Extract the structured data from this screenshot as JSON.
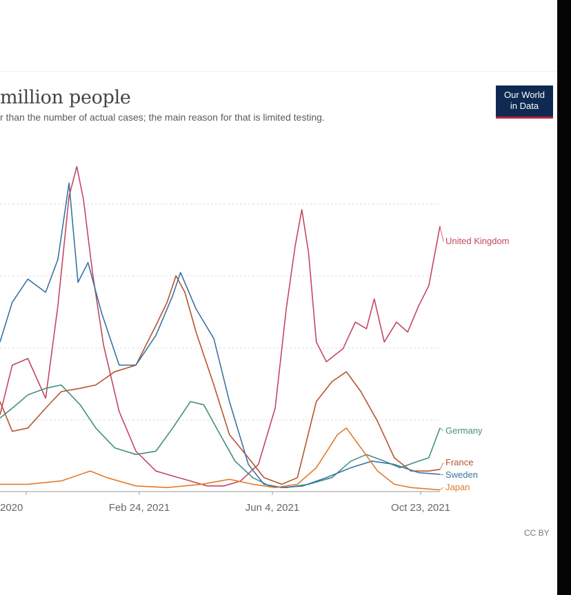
{
  "header": {
    "title": "million people",
    "subtitle": "r than the number of actual cases; the main reason for that is limited testing."
  },
  "logo": {
    "line1": "Our World",
    "line2": "in Data"
  },
  "footer": {
    "license": "CC BY"
  },
  "colors": {
    "United Kingdom": "#c4455e",
    "Germany": "#3f8f80",
    "France": "#b5532c",
    "Sweden": "#3a72a1",
    "Japan": "#e07a2a",
    "logo_bg": "#0f2a52",
    "logo_accent": "#c0243a"
  },
  "chart_data": {
    "type": "line",
    "xlabel": "",
    "ylabel": "",
    "x_ticks": [
      "2020",
      "Feb 24, 2021",
      "Jun 4, 2021",
      "Oct 23, 2021"
    ],
    "grid": "horizontal dashed",
    "legend": "inline labels at line ends (right)",
    "series": [
      {
        "name": "United Kingdom",
        "points": [
          [
            "2020-10-21",
            0.23
          ],
          [
            "2020-11-01",
            0.38
          ],
          [
            "2020-11-15",
            0.4
          ],
          [
            "2020-12-01",
            0.28
          ],
          [
            "2020-12-12",
            0.56
          ],
          [
            "2020-12-22",
            0.89
          ],
          [
            "2020-12-29",
            0.98
          ],
          [
            "2021-01-04",
            0.88
          ],
          [
            "2021-01-12",
            0.66
          ],
          [
            "2021-01-22",
            0.44
          ],
          [
            "2021-02-05",
            0.24
          ],
          [
            "2021-02-20",
            0.12
          ],
          [
            "2021-03-10",
            0.06
          ],
          [
            "2021-03-25",
            0.045
          ],
          [
            "2021-04-10",
            0.03
          ],
          [
            "2021-04-25",
            0.015
          ],
          [
            "2021-05-10",
            0.015
          ],
          [
            "2021-05-25",
            0.03
          ],
          [
            "2021-06-10",
            0.08
          ],
          [
            "2021-06-25",
            0.25
          ],
          [
            "2021-07-05",
            0.55
          ],
          [
            "2021-07-13",
            0.74
          ],
          [
            "2021-07-19",
            0.85
          ],
          [
            "2021-07-25",
            0.72
          ],
          [
            "2021-08-01",
            0.45
          ],
          [
            "2021-08-10",
            0.39
          ],
          [
            "2021-08-25",
            0.43
          ],
          [
            "2021-09-05",
            0.51
          ],
          [
            "2021-09-15",
            0.49
          ],
          [
            "2021-09-22",
            0.58
          ],
          [
            "2021-10-01",
            0.45
          ],
          [
            "2021-10-12",
            0.51
          ],
          [
            "2021-10-22",
            0.48
          ],
          [
            "2021-11-01",
            0.56
          ],
          [
            "2021-11-10",
            0.62
          ],
          [
            "2021-11-20",
            0.8
          ]
        ]
      },
      {
        "name": "Germany",
        "points": [
          [
            "2020-10-21",
            0.22
          ],
          [
            "2020-11-01",
            0.25
          ],
          [
            "2020-11-15",
            0.29
          ],
          [
            "2020-12-01",
            0.31
          ],
          [
            "2020-12-15",
            0.32
          ],
          [
            "2021-01-01",
            0.26
          ],
          [
            "2021-01-15",
            0.19
          ],
          [
            "2021-02-01",
            0.13
          ],
          [
            "2021-02-20",
            0.11
          ],
          [
            "2021-03-10",
            0.12
          ],
          [
            "2021-03-25",
            0.19
          ],
          [
            "2021-04-10",
            0.27
          ],
          [
            "2021-04-22",
            0.26
          ],
          [
            "2021-05-05",
            0.18
          ],
          [
            "2021-05-20",
            0.09
          ],
          [
            "2021-06-05",
            0.04
          ],
          [
            "2021-06-20",
            0.015
          ],
          [
            "2021-07-05",
            0.01
          ],
          [
            "2021-07-25",
            0.02
          ],
          [
            "2021-08-15",
            0.04
          ],
          [
            "2021-09-01",
            0.09
          ],
          [
            "2021-09-15",
            0.11
          ],
          [
            "2021-10-01",
            0.09
          ],
          [
            "2021-10-15",
            0.07
          ],
          [
            "2021-11-01",
            0.09
          ],
          [
            "2021-11-10",
            0.1
          ],
          [
            "2021-11-20",
            0.19
          ]
        ]
      },
      {
        "name": "France",
        "points": [
          [
            "2020-10-21",
            0.27
          ],
          [
            "2020-11-01",
            0.18
          ],
          [
            "2020-11-15",
            0.19
          ],
          [
            "2020-12-01",
            0.25
          ],
          [
            "2020-12-15",
            0.3
          ],
          [
            "2021-01-01",
            0.31
          ],
          [
            "2021-01-15",
            0.32
          ],
          [
            "2021-02-01",
            0.36
          ],
          [
            "2021-02-20",
            0.38
          ],
          [
            "2021-03-10",
            0.5
          ],
          [
            "2021-03-20",
            0.57
          ],
          [
            "2021-03-28",
            0.65
          ],
          [
            "2021-04-05",
            0.6
          ],
          [
            "2021-04-15",
            0.48
          ],
          [
            "2021-05-01",
            0.32
          ],
          [
            "2021-05-15",
            0.17
          ],
          [
            "2021-06-01",
            0.1
          ],
          [
            "2021-06-15",
            0.04
          ],
          [
            "2021-07-01",
            0.02
          ],
          [
            "2021-07-15",
            0.04
          ],
          [
            "2021-08-01",
            0.27
          ],
          [
            "2021-08-15",
            0.33
          ],
          [
            "2021-08-28",
            0.36
          ],
          [
            "2021-09-10",
            0.3
          ],
          [
            "2021-09-25",
            0.21
          ],
          [
            "2021-10-10",
            0.1
          ],
          [
            "2021-10-25",
            0.06
          ],
          [
            "2021-11-10",
            0.06
          ],
          [
            "2021-11-20",
            0.065
          ]
        ]
      },
      {
        "name": "Sweden",
        "points": [
          [
            "2020-10-21",
            0.45
          ],
          [
            "2020-11-01",
            0.57
          ],
          [
            "2020-11-15",
            0.64
          ],
          [
            "2020-12-01",
            0.6
          ],
          [
            "2020-12-12",
            0.7
          ],
          [
            "2020-12-22",
            0.93
          ],
          [
            "2020-12-30",
            0.63
          ],
          [
            "2021-01-08",
            0.69
          ],
          [
            "2021-01-20",
            0.54
          ],
          [
            "2021-02-05",
            0.38
          ],
          [
            "2021-02-20",
            0.38
          ],
          [
            "2021-03-10",
            0.47
          ],
          [
            "2021-03-25",
            0.59
          ],
          [
            "2021-04-01",
            0.66
          ],
          [
            "2021-04-15",
            0.55
          ],
          [
            "2021-05-01",
            0.46
          ],
          [
            "2021-05-15",
            0.27
          ],
          [
            "2021-06-01",
            0.08
          ],
          [
            "2021-06-15",
            0.02
          ],
          [
            "2021-07-01",
            0.01
          ],
          [
            "2021-07-20",
            0.015
          ],
          [
            "2021-08-10",
            0.04
          ],
          [
            "2021-09-01",
            0.07
          ],
          [
            "2021-09-20",
            0.09
          ],
          [
            "2021-10-10",
            0.08
          ],
          [
            "2021-11-01",
            0.055
          ],
          [
            "2021-11-20",
            0.05
          ]
        ]
      },
      {
        "name": "Japan",
        "points": [
          [
            "2020-10-21",
            0.02
          ],
          [
            "2020-11-15",
            0.02
          ],
          [
            "2020-12-15",
            0.03
          ],
          [
            "2021-01-10",
            0.06
          ],
          [
            "2021-01-25",
            0.04
          ],
          [
            "2021-02-20",
            0.015
          ],
          [
            "2021-03-20",
            0.01
          ],
          [
            "2021-04-20",
            0.02
          ],
          [
            "2021-05-15",
            0.035
          ],
          [
            "2021-06-05",
            0.02
          ],
          [
            "2021-06-25",
            0.01
          ],
          [
            "2021-07-15",
            0.02
          ],
          [
            "2021-08-01",
            0.07
          ],
          [
            "2021-08-20",
            0.17
          ],
          [
            "2021-08-28",
            0.19
          ],
          [
            "2021-09-10",
            0.13
          ],
          [
            "2021-09-25",
            0.06
          ],
          [
            "2021-10-10",
            0.02
          ],
          [
            "2021-10-25",
            0.01
          ],
          [
            "2021-11-20",
            0.003
          ]
        ]
      }
    ]
  }
}
